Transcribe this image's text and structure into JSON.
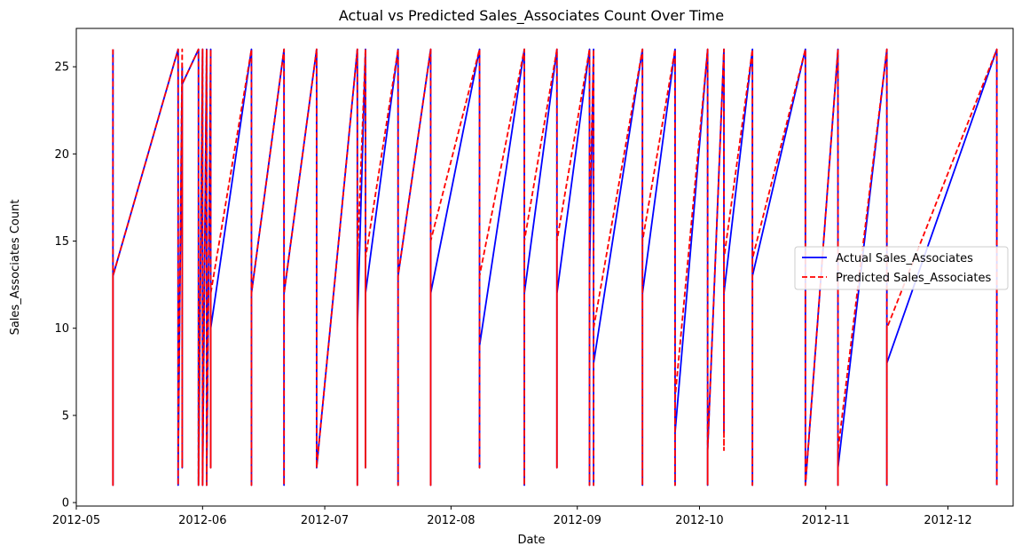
{
  "chart_data": {
    "type": "line",
    "title": "Actual vs Predicted Sales_Associates Count Over Time",
    "xlabel": "Date",
    "ylabel": "Sales_Associates Count",
    "xlim": [
      "2012-05-01",
      "2012-12-17"
    ],
    "ylim": [
      -0.2,
      27.2
    ],
    "x_ticks": [
      "2012-05-01",
      "2012-06-01",
      "2012-07-01",
      "2012-08-01",
      "2012-09-01",
      "2012-10-01",
      "2012-11-01",
      "2012-12-01"
    ],
    "x_tick_labels": [
      "2012-05",
      "2012-06",
      "2012-07",
      "2012-08",
      "2012-09",
      "2012-10",
      "2012-11",
      "2012-12"
    ],
    "y_ticks": [
      0,
      5,
      10,
      15,
      20,
      25
    ],
    "grid": false,
    "legend_position": "center-right",
    "series": [
      {
        "name": "Actual Sales_Associates",
        "color": "#0000ff",
        "style": "solid",
        "points": [
          [
            "2012-05-10",
            26
          ],
          [
            "2012-05-10",
            1
          ],
          [
            "2012-05-10",
            13
          ],
          [
            "2012-05-26",
            26
          ],
          [
            "2012-05-26",
            1
          ],
          [
            "2012-05-26",
            2
          ],
          [
            "2012-05-27",
            25
          ],
          [
            "2012-05-27",
            2
          ],
          [
            "2012-05-27",
            24
          ],
          [
            "2012-05-31",
            26
          ],
          [
            "2012-05-31",
            1
          ],
          [
            "2012-06-01",
            26
          ],
          [
            "2012-06-01",
            1
          ],
          [
            "2012-06-02",
            26
          ],
          [
            "2012-06-02",
            1
          ],
          [
            "2012-06-03",
            26
          ],
          [
            "2012-06-03",
            2
          ],
          [
            "2012-06-03",
            10
          ],
          [
            "2012-06-13",
            26
          ],
          [
            "2012-06-13",
            1
          ],
          [
            "2012-06-13",
            12
          ],
          [
            "2012-06-21",
            26
          ],
          [
            "2012-06-21",
            1
          ],
          [
            "2012-06-21",
            12
          ],
          [
            "2012-06-29",
            26
          ],
          [
            "2012-06-29",
            2
          ],
          [
            "2012-07-09",
            26
          ],
          [
            "2012-07-09",
            1
          ],
          [
            "2012-07-09",
            10
          ],
          [
            "2012-07-11",
            26
          ],
          [
            "2012-07-11",
            2
          ],
          [
            "2012-07-11",
            12
          ],
          [
            "2012-07-19",
            26
          ],
          [
            "2012-07-19",
            1
          ],
          [
            "2012-07-19",
            13
          ],
          [
            "2012-07-27",
            26
          ],
          [
            "2012-07-27",
            1
          ],
          [
            "2012-07-27",
            12
          ],
          [
            "2012-08-08",
            26
          ],
          [
            "2012-08-08",
            2
          ],
          [
            "2012-08-08",
            9
          ],
          [
            "2012-08-19",
            26
          ],
          [
            "2012-08-19",
            1
          ],
          [
            "2012-08-19",
            12
          ],
          [
            "2012-08-27",
            26
          ],
          [
            "2012-08-27",
            2
          ],
          [
            "2012-08-27",
            12
          ],
          [
            "2012-09-04",
            26
          ],
          [
            "2012-09-04",
            1
          ],
          [
            "2012-09-04",
            13
          ],
          [
            "2012-09-05",
            26
          ],
          [
            "2012-09-05",
            1
          ],
          [
            "2012-09-05",
            8
          ],
          [
            "2012-09-17",
            26
          ],
          [
            "2012-09-17",
            1
          ],
          [
            "2012-09-17",
            12
          ],
          [
            "2012-09-25",
            26
          ],
          [
            "2012-09-25",
            1
          ],
          [
            "2012-09-25",
            4
          ],
          [
            "2012-10-03",
            26
          ],
          [
            "2012-10-03",
            1
          ],
          [
            "2012-10-03",
            3
          ],
          [
            "2012-10-07",
            26
          ],
          [
            "2012-10-07",
            4
          ],
          [
            "2012-10-07",
            12
          ],
          [
            "2012-10-14",
            26
          ],
          [
            "2012-10-14",
            1
          ],
          [
            "2012-10-14",
            13
          ],
          [
            "2012-10-27",
            26
          ],
          [
            "2012-10-27",
            1
          ],
          [
            "2012-11-04",
            26
          ],
          [
            "2012-11-04",
            1
          ],
          [
            "2012-11-04",
            2
          ],
          [
            "2012-11-16",
            26
          ],
          [
            "2012-11-16",
            1
          ],
          [
            "2012-11-16",
            8
          ],
          [
            "2012-12-13",
            26
          ],
          [
            "2012-12-13",
            1
          ]
        ]
      },
      {
        "name": "Predicted Sales_Associates",
        "color": "#ff0000",
        "style": "dashed",
        "points": [
          [
            "2012-05-10",
            26
          ],
          [
            "2012-05-10",
            1
          ],
          [
            "2012-05-10",
            13
          ],
          [
            "2012-05-26",
            26
          ],
          [
            "2012-05-26",
            1
          ],
          [
            "2012-05-26",
            2
          ],
          [
            "2012-05-27",
            26
          ],
          [
            "2012-05-27",
            2
          ],
          [
            "2012-05-27",
            24
          ],
          [
            "2012-05-31",
            26
          ],
          [
            "2012-05-31",
            1
          ],
          [
            "2012-06-01",
            26
          ],
          [
            "2012-06-01",
            1
          ],
          [
            "2012-06-02",
            26
          ],
          [
            "2012-06-02",
            1
          ],
          [
            "2012-06-03",
            26
          ],
          [
            "2012-06-03",
            2
          ],
          [
            "2012-06-03",
            12
          ],
          [
            "2012-06-13",
            26
          ],
          [
            "2012-06-13",
            1
          ],
          [
            "2012-06-13",
            12
          ],
          [
            "2012-06-21",
            26
          ],
          [
            "2012-06-21",
            1
          ],
          [
            "2012-06-21",
            12
          ],
          [
            "2012-06-29",
            26
          ],
          [
            "2012-06-29",
            2
          ],
          [
            "2012-07-09",
            26
          ],
          [
            "2012-07-09",
            1
          ],
          [
            "2012-07-09",
            14
          ],
          [
            "2012-07-11",
            26
          ],
          [
            "2012-07-11",
            2
          ],
          [
            "2012-07-11",
            14
          ],
          [
            "2012-07-19",
            26
          ],
          [
            "2012-07-19",
            1
          ],
          [
            "2012-07-19",
            13
          ],
          [
            "2012-07-27",
            26
          ],
          [
            "2012-07-27",
            1
          ],
          [
            "2012-07-27",
            15
          ],
          [
            "2012-08-08",
            26
          ],
          [
            "2012-08-08",
            2
          ],
          [
            "2012-08-08",
            13
          ],
          [
            "2012-08-19",
            26
          ],
          [
            "2012-08-19",
            1
          ],
          [
            "2012-08-19",
            15
          ],
          [
            "2012-08-27",
            26
          ],
          [
            "2012-08-27",
            2
          ],
          [
            "2012-08-27",
            15
          ],
          [
            "2012-09-04",
            26
          ],
          [
            "2012-09-04",
            1
          ],
          [
            "2012-09-04",
            16
          ],
          [
            "2012-09-05",
            26
          ],
          [
            "2012-09-05",
            1
          ],
          [
            "2012-09-05",
            10
          ],
          [
            "2012-09-17",
            26
          ],
          [
            "2012-09-17",
            1
          ],
          [
            "2012-09-17",
            15
          ],
          [
            "2012-09-25",
            26
          ],
          [
            "2012-09-25",
            1
          ],
          [
            "2012-09-25",
            6
          ],
          [
            "2012-10-03",
            26
          ],
          [
            "2012-10-03",
            1
          ],
          [
            "2012-10-03",
            3
          ],
          [
            "2012-10-07",
            26
          ],
          [
            "2012-10-07",
            3
          ],
          [
            "2012-10-07",
            14
          ],
          [
            "2012-10-14",
            26
          ],
          [
            "2012-10-14",
            1
          ],
          [
            "2012-10-14",
            14
          ],
          [
            "2012-10-27",
            26
          ],
          [
            "2012-10-27",
            1
          ],
          [
            "2012-11-04",
            26
          ],
          [
            "2012-11-04",
            1
          ],
          [
            "2012-11-04",
            3
          ],
          [
            "2012-11-16",
            26
          ],
          [
            "2012-11-16",
            1
          ],
          [
            "2012-11-16",
            10
          ],
          [
            "2012-12-13",
            26
          ],
          [
            "2012-12-13",
            1
          ]
        ]
      }
    ]
  }
}
